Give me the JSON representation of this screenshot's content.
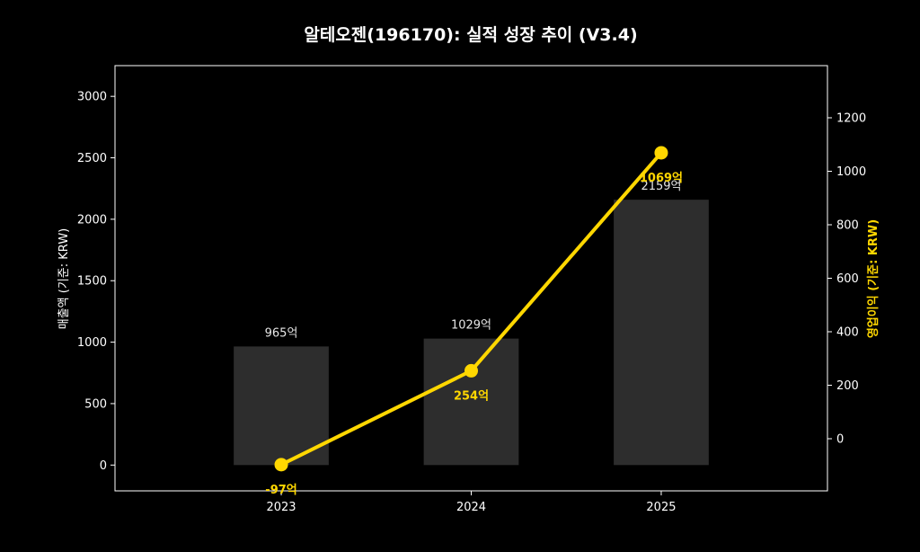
{
  "chart_data": {
    "type": "bar+line",
    "title": "알테오젠(196170): 실적 성장 추이 (V3.4)",
    "categories": [
      "2023",
      "2024",
      "2025"
    ],
    "left_axis": {
      "label": "매출액 (기준: KRW)",
      "range": [
        -210,
        3250
      ],
      "ticks": [
        0,
        500,
        1000,
        1500,
        2000,
        2500,
        3000
      ]
    },
    "right_axis": {
      "label": "영업이익 (기준: KRW)",
      "range": [
        -195,
        1395
      ],
      "ticks": [
        0,
        200,
        400,
        600,
        800,
        1000,
        1200
      ]
    },
    "series": [
      {
        "name": "매출액",
        "kind": "bar",
        "axis": "left",
        "values": [
          965,
          1029,
          2159
        ],
        "labels": [
          "965억",
          "1029억",
          "2159억"
        ]
      },
      {
        "name": "영업이익",
        "kind": "line",
        "axis": "right",
        "values": [
          -97,
          254,
          1069
        ],
        "labels": [
          "-97억",
          "254억",
          "1069억"
        ]
      }
    ],
    "grid": false
  },
  "colors": {
    "background": "#000000",
    "bar": "#2d2d2d",
    "line": "#ffd700",
    "text": "#ffffff",
    "axis": "#ffffff"
  }
}
